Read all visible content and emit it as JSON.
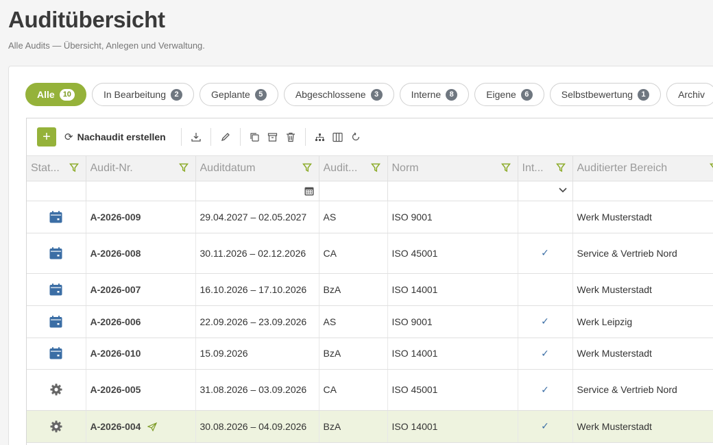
{
  "header": {
    "title": "Auditübersicht",
    "subtitle": "Alle Audits — Übersicht, Anlegen und Verwaltung."
  },
  "tabs": [
    {
      "label": "Alle",
      "count": "10",
      "active": true
    },
    {
      "label": "In Bearbeitung",
      "count": "2"
    },
    {
      "label": "Geplante",
      "count": "5"
    },
    {
      "label": "Abgeschlossene",
      "count": "3"
    },
    {
      "label": "Interne",
      "count": "8"
    },
    {
      "label": "Eigene",
      "count": "6"
    },
    {
      "label": "Selbstbewertung",
      "count": "1"
    },
    {
      "label": "Archiv",
      "count": ""
    }
  ],
  "toolbar": {
    "add_label": "+",
    "reaudit_label": "Nachaudit erstellen",
    "icons": [
      "download-icon",
      "edit-icon",
      "copy-icon",
      "archive-icon",
      "delete-icon",
      "hierarchy-icon",
      "columns-icon",
      "refresh-icon"
    ]
  },
  "table": {
    "columns": [
      "Stat...",
      "Audit-Nr.",
      "Auditdatum",
      "Audit...",
      "Norm",
      "Int...",
      "Auditierter Bereich"
    ],
    "rows": [
      {
        "status": "planned",
        "nr": "A-2026-009",
        "date": "29.04.2027 – 02.05.2027",
        "type": "AS",
        "norm": "ISO 9001",
        "internal": "",
        "area": "Werk Musterstadt"
      },
      {
        "status": "planned",
        "nr": "A-2026-008",
        "date": "30.11.2026 – 02.12.2026",
        "type": "CA",
        "norm": "ISO 45001",
        "internal": "✓",
        "area": "Service & Vertrieb Nord"
      },
      {
        "status": "planned",
        "nr": "A-2026-007",
        "date": "16.10.2026 – 17.10.2026",
        "type": "BzA",
        "norm": "ISO 14001",
        "internal": "",
        "area": "Werk Musterstadt"
      },
      {
        "status": "planned",
        "nr": "A-2026-006",
        "date": "22.09.2026 – 23.09.2026",
        "type": "AS",
        "norm": "ISO 9001",
        "internal": "✓",
        "area": "Werk Leipzig"
      },
      {
        "status": "planned",
        "nr": "A-2026-010",
        "date": "15.09.2026",
        "type": "BzA",
        "norm": "ISO 14001",
        "internal": "✓",
        "area": "Werk Musterstadt"
      },
      {
        "status": "in-progress",
        "nr": "A-2026-005",
        "date": "31.08.2026 – 03.09.2026",
        "type": "CA",
        "norm": "ISO 45001",
        "internal": "✓",
        "area": "Service & Vertrieb Nord"
      },
      {
        "status": "in-progress",
        "nr": "A-2026-004",
        "date": "30.08.2026 – 04.09.2026",
        "type": "BzA",
        "norm": "ISO 14001",
        "internal": "✓",
        "area": "Werk Musterstadt",
        "highlighted": true,
        "sent": true
      }
    ]
  },
  "colors": {
    "accent": "#95b23a",
    "status_icon": "#3b6ea5",
    "gear_icon": "#666666",
    "highlight_row": "#eef3df"
  }
}
